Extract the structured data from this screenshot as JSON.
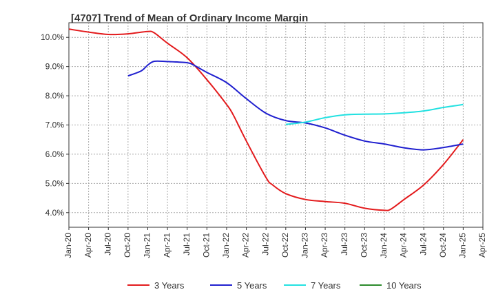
{
  "chart_data": {
    "type": "line",
    "title": "[4707]  Trend of Mean of Ordinary Income Margin",
    "xlabel": "",
    "ylabel": "",
    "x_labels": [
      "Jan-20",
      "Apr-20",
      "Jul-20",
      "Oct-20",
      "Jan-21",
      "Apr-21",
      "Jul-21",
      "Oct-21",
      "Jan-22",
      "Apr-22",
      "Jul-22",
      "Oct-22",
      "Jan-23",
      "Apr-23",
      "Jul-23",
      "Oct-23",
      "Jan-24",
      "Apr-24",
      "Jul-24",
      "Oct-24",
      "Jan-25",
      "Apr-25"
    ],
    "y_ticks": [
      "4.0%",
      "5.0%",
      "6.0%",
      "7.0%",
      "8.0%",
      "9.0%",
      "10.0%"
    ],
    "ylim": [
      3.5,
      10.5
    ],
    "grid": true,
    "legend_position": "bottom",
    "series": [
      {
        "name": "3 Years",
        "color": "#e31a1c",
        "x": [
          "Jan-20",
          "Apr-20",
          "Jul-20",
          "Oct-20",
          "Jan-21",
          "Feb-21",
          "Apr-21",
          "Jul-21",
          "Oct-21",
          "Jan-22",
          "Feb-22",
          "Apr-22",
          "Jul-22",
          "Aug-22",
          "Oct-22",
          "Jan-23",
          "Apr-23",
          "Jul-23",
          "Oct-23",
          "Jan-24",
          "Feb-24",
          "Apr-24",
          "Jul-24",
          "Oct-24",
          "Jan-25"
        ],
        "values": [
          10.28,
          10.18,
          10.1,
          10.12,
          10.2,
          10.15,
          9.8,
          9.3,
          8.55,
          7.7,
          7.35,
          6.45,
          5.2,
          4.95,
          4.65,
          4.45,
          4.38,
          4.32,
          4.15,
          4.08,
          4.12,
          4.45,
          4.95,
          5.65,
          6.5
        ]
      },
      {
        "name": "5 Years",
        "color": "#1f1fcf",
        "x": [
          "Oct-20",
          "Dec-20",
          "Jan-21",
          "Feb-21",
          "Apr-21",
          "Jul-21",
          "Aug-21",
          "Oct-21",
          "Jan-22",
          "Apr-22",
          "Jul-22",
          "Oct-22",
          "Jan-23",
          "Apr-23",
          "Jul-23",
          "Oct-23",
          "Jan-24",
          "Apr-24",
          "Jul-24",
          "Oct-24",
          "Jan-25"
        ],
        "values": [
          8.68,
          8.85,
          9.05,
          9.18,
          9.17,
          9.13,
          9.05,
          8.8,
          8.45,
          7.9,
          7.4,
          7.15,
          7.07,
          6.9,
          6.65,
          6.45,
          6.35,
          6.22,
          6.15,
          6.23,
          6.35
        ]
      },
      {
        "name": "7 Years",
        "color": "#22e1e1",
        "x": [
          "Oct-22",
          "Jan-23",
          "Apr-23",
          "Jul-23",
          "Oct-23",
          "Jan-24",
          "Apr-24",
          "Jul-24",
          "Oct-24",
          "Jan-25"
        ],
        "values": [
          7.02,
          7.1,
          7.25,
          7.35,
          7.37,
          7.38,
          7.42,
          7.48,
          7.6,
          7.7
        ]
      },
      {
        "name": "10 Years",
        "color": "#2a8a2a",
        "x": [],
        "values": []
      }
    ]
  }
}
